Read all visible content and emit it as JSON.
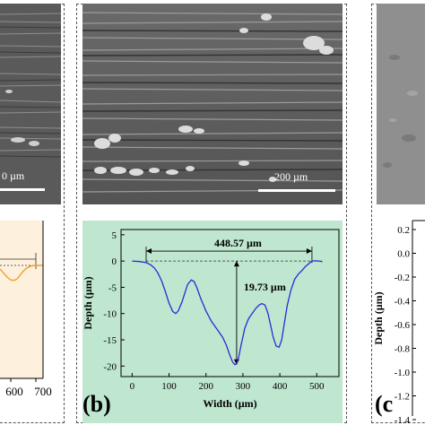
{
  "panel_a": {
    "scale_label": "0 µm",
    "x_ticks": [
      "600",
      "700"
    ]
  },
  "panel_b": {
    "letter": "(b)",
    "scale_label": "200 µm"
  },
  "panel_c": {
    "letter": "(c",
    "y_ticks": [
      "0.2",
      "0.0",
      "-0.2",
      "-0.4",
      "-0.6",
      "-0.8",
      "-1.0",
      "-1.2",
      "-1.4"
    ],
    "ylabel": "Depth (µm)"
  },
  "chart_data": {
    "type": "line",
    "xlabel": "Width (µm)",
    "ylabel": "Depth (µm)",
    "xlim": [
      -30,
      560
    ],
    "ylim": [
      -22,
      6
    ],
    "x_ticks": [
      "0",
      "100",
      "200",
      "300",
      "400",
      "500"
    ],
    "y_ticks": [
      "5",
      "0",
      "-5",
      "-10",
      "-15",
      "-20"
    ],
    "background_color": "#bfe6cf",
    "line_color": "#2b2bd6",
    "annotations": {
      "width_label": "448.57 µm",
      "depth_label": "19.73 µm",
      "width_from": 38,
      "width_to": 487,
      "width_y": 1.9,
      "depth_x": 283,
      "depth_from": 0,
      "depth_to": -19.73
    },
    "series": [
      {
        "x": [
          0,
          20,
          38,
          50,
          60,
          70,
          80,
          90,
          100,
          110,
          118,
          125,
          135,
          150,
          160,
          168,
          175,
          185,
          200,
          215,
          230,
          245,
          255,
          265,
          272,
          278,
          283,
          288,
          295,
          305,
          315,
          325,
          335,
          345,
          352,
          360,
          368,
          375,
          382,
          390,
          398,
          405,
          412,
          420,
          430,
          440,
          450,
          460,
          470,
          480,
          487,
          495,
          505,
          515
        ],
        "y": [
          0,
          -0.1,
          -0.3,
          -0.7,
          -1.3,
          -2.3,
          -3.8,
          -5.8,
          -8.0,
          -9.6,
          -10.0,
          -9.5,
          -7.8,
          -4.5,
          -3.6,
          -3.9,
          -5.0,
          -7.0,
          -9.5,
          -11.5,
          -13.0,
          -14.5,
          -16.0,
          -18.0,
          -19.2,
          -19.73,
          -19.5,
          -18.5,
          -16.0,
          -12.8,
          -11.0,
          -10.0,
          -9.0,
          -8.3,
          -8.1,
          -8.4,
          -10.0,
          -12.2,
          -14.5,
          -16.2,
          -16.4,
          -15.0,
          -12.0,
          -8.5,
          -5.5,
          -3.5,
          -2.5,
          -1.8,
          -1.0,
          -0.4,
          0.0,
          0.05,
          0.0,
          -0.1
        ]
      }
    ]
  }
}
